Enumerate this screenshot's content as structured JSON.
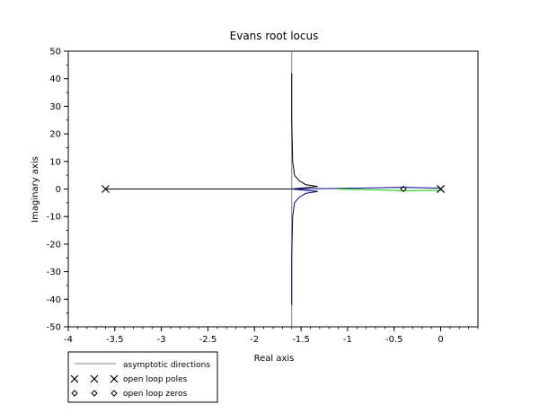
{
  "chart_data": {
    "type": "line",
    "title": "Evans root locus",
    "xlabel": "Real axis",
    "ylabel": "Imaginary axis",
    "xlim": [
      -4,
      0.4
    ],
    "ylim": [
      -50,
      50
    ],
    "xticks": [
      -4,
      -3.5,
      -3,
      -2.5,
      -2,
      -1.5,
      -1,
      -0.5,
      0
    ],
    "xtick_labels": [
      "-4",
      "-3.5",
      "-3",
      "-2.5",
      "-2",
      "-1.5",
      "-1",
      "-0.5",
      "0"
    ],
    "yticks": [
      -50,
      -40,
      -30,
      -20,
      -10,
      0,
      10,
      20,
      30,
      40,
      50
    ],
    "ytick_labels": [
      "-50",
      "-40",
      "-30",
      "-20",
      "-10",
      "0",
      "10",
      "20",
      "30",
      "40",
      "50"
    ],
    "grid": false,
    "legend": {
      "placement": "bottom-left",
      "entries": [
        "asymptotic directions",
        "open loop poles",
        "open loop zeros"
      ]
    },
    "asymptote": {
      "x": -1.6,
      "ylim": [
        -50,
        50
      ],
      "color": "#808080"
    },
    "open_loop_poles": [
      {
        "x": -3.6,
        "y": 0
      },
      {
        "x": 0,
        "y": 0
      },
      {
        "x": 0,
        "y": 0
      }
    ],
    "open_loop_zeros": [
      {
        "x": -0.4,
        "y": 0
      }
    ],
    "series": [
      {
        "color": "#000000",
        "points": [
          [
            -3.6,
            0
          ],
          [
            -1.6,
            0
          ]
        ]
      },
      {
        "color": "#000000",
        "points": [
          [
            -1.6,
            0
          ],
          [
            -1.32,
            0.9
          ],
          [
            -1.45,
            1.6
          ],
          [
            -1.52,
            3
          ],
          [
            -1.57,
            5
          ],
          [
            -1.59,
            10
          ],
          [
            -1.6,
            25
          ],
          [
            -1.6,
            42
          ]
        ]
      },
      {
        "color": "#000080",
        "points": [
          [
            -1.6,
            0
          ],
          [
            -1.32,
            -0.9
          ],
          [
            -1.45,
            -1.6
          ],
          [
            -1.52,
            -3
          ],
          [
            -1.57,
            -5
          ],
          [
            -1.59,
            -10
          ],
          [
            -1.6,
            -25
          ],
          [
            -1.6,
            -42
          ]
        ]
      },
      {
        "color": "#000080",
        "points": [
          [
            -1.6,
            0
          ],
          [
            -1.1,
            0.2
          ],
          [
            -0.4,
            0.6
          ],
          [
            0,
            0.3
          ]
        ]
      },
      {
        "color": "#00cc00",
        "points": [
          [
            -1.1,
            0
          ],
          [
            -0.4,
            -0.6
          ],
          [
            0,
            -0.5
          ]
        ]
      }
    ]
  }
}
